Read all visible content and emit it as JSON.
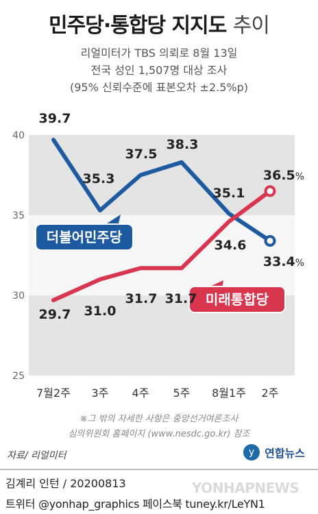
{
  "header": {
    "title_main": "민주당·통합당 지지도",
    "title_light": "추이",
    "subtitle_1": "리얼미터가 TBS 의뢰로 8월 13일",
    "subtitle_2": "전국 성인 1,507명 대상 조사",
    "subtitle_3": "(95% 신뢰수준에 표본오차 ±2.5%p)"
  },
  "chart_data": {
    "type": "line",
    "categories": [
      "7월2주",
      "3주",
      "4주",
      "5주",
      "8월1주",
      "2주"
    ],
    "ylim": [
      25,
      40
    ],
    "yticks": [
      25,
      30,
      35,
      40
    ],
    "grid": "alternating bands",
    "series": [
      {
        "name": "더불어민주당",
        "color": "#1e5aa0",
        "values": [
          39.7,
          35.3,
          37.5,
          38.3,
          35.1,
          33.4
        ],
        "labels": [
          "39.7",
          "35.3",
          "37.5",
          "38.3",
          "35.1",
          "33.4%"
        ]
      },
      {
        "name": "미래통합당",
        "color": "#d8354f",
        "values": [
          29.7,
          31.0,
          31.7,
          31.7,
          34.6,
          36.5
        ],
        "labels": [
          "29.7",
          "31.0",
          "31.7",
          "31.7",
          "34.6",
          "36.5%"
        ]
      }
    ]
  },
  "notes": {
    "line_1": "※그 밖의 자세한 사항은 중앙선거여론조사",
    "line_2": "심의위원회 홈페이지 (www.nesdc.go.kr) 참조"
  },
  "footer": {
    "source": "자료/ 리얼미터",
    "logo": "연합뉴스",
    "credit": "김계리 인턴 / 20200813",
    "social": "트위터 @yonhap_graphics  페이스북 tuney.kr/LeYN1",
    "watermark": "YONHAPNEWS"
  }
}
